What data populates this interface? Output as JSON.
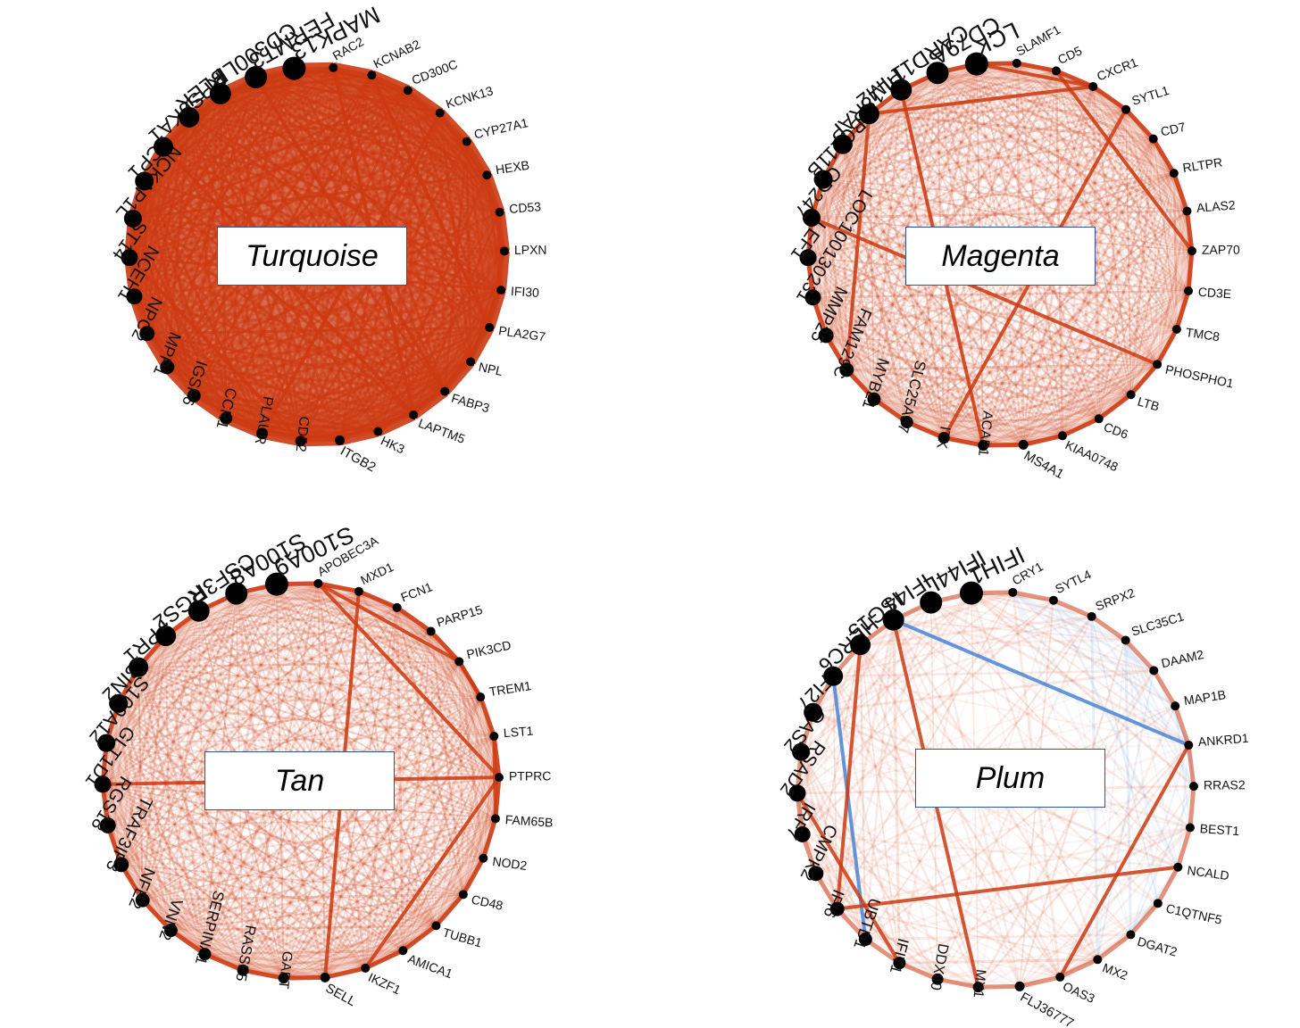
{
  "colors": {
    "positive": "#cc3a12",
    "negative": "#4a86d8",
    "node": "#000000",
    "title_border": "#2f5597"
  },
  "modules": [
    {
      "key": "turquoise",
      "title": "Turquoise",
      "density": "dense",
      "genes": [
        "RAC2",
        "KCNAB2",
        "CD300C",
        "KCNK13",
        "CYP27A1",
        "HEXB",
        "CD53",
        "LPXN",
        "IFI30",
        "PLA2G7",
        "NPL",
        "FABP3",
        "LAPTM5",
        "HK3",
        "ITGB2",
        "CD52",
        "PLAUR",
        "CCR1",
        "IGSF6",
        "MPP1",
        "NPC2",
        "NCEH1",
        "ST14",
        "NCKAP1L",
        "LCP1",
        "RPS6KA1",
        "PLEK",
        "CD300LB",
        "FERMT3",
        "MAPK13"
      ]
    },
    {
      "key": "magenta",
      "title": "Magenta",
      "density": "medium",
      "genes": [
        "SLAMF1",
        "CD5",
        "CXCR1",
        "SYTL1",
        "CD7",
        "RLTPR",
        "ALAS2",
        "ZAP70",
        "CD3E",
        "TMC8",
        "PHOSPHO1",
        "LTB",
        "CD6",
        "KIAA0748",
        "MS4A1",
        "ACAP1",
        "ITK",
        "SLC25A37",
        "MYBL1",
        "FAM129C",
        "MMP25",
        "LOC100130231",
        "LEF1",
        "CD247",
        "BCL11B",
        "IL18RAP",
        "PIM2",
        "CARD11",
        "CD79A",
        "LCK"
      ]
    },
    {
      "key": "tan",
      "title": "Tan",
      "density": "medium",
      "genes": [
        "APOBEC3A",
        "MXD1",
        "FCN1",
        "PARP15",
        "PIK3CD",
        "TREM1",
        "LST1",
        "PTPRC",
        "FAM65B",
        "NOD2",
        "CD48",
        "TUBB1",
        "AMICA1",
        "IKZF1",
        "SELL",
        "GAPT",
        "RASSF5",
        "SERPINA1",
        "VNN2",
        "NFE2",
        "TRAF3IP3",
        "RGS18",
        "GLT1D1",
        "S100A12",
        "BIN2",
        "FPR1",
        "RGS2",
        "CSF3R",
        "S100A8",
        "S100A9"
      ]
    },
    {
      "key": "plum",
      "title": "Plum",
      "density": "sparse",
      "genes": [
        "CRY1",
        "SYTL4",
        "SRPX2",
        "SLC35C1",
        "DAAM2",
        "MAP1B",
        "ANKRD1",
        "RRAS2",
        "BEST1",
        "NCALD",
        "C1QTNF5",
        "DGAT2",
        "MX2",
        "OAS3",
        "FLJ36777",
        "MX1",
        "DDX60",
        "IFIT1",
        "UBTD1",
        "IFI6",
        "CMPK2",
        "IRF7",
        "RSAD2",
        "OAS2",
        "IFI27",
        "HERC6",
        "ISG15",
        "IFI44",
        "IFI44L",
        "IFIH1"
      ]
    }
  ]
}
